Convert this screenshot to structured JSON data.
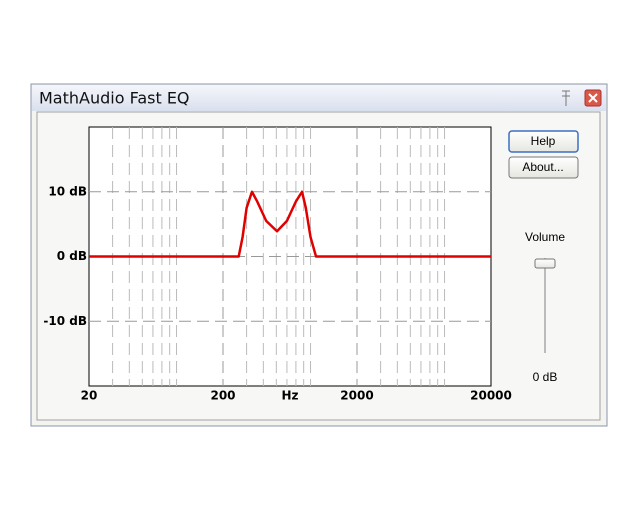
{
  "window": {
    "title": "MathAudio Fast EQ"
  },
  "buttons": [
    "Help",
    "About..."
  ],
  "volume": {
    "label": "Volume",
    "value_label": "0 dB"
  },
  "chart_data": {
    "type": "line",
    "xlabel": "Hz",
    "log_x": true,
    "xlim": [
      20,
      20000
    ],
    "ylim": [
      -20,
      20
    ],
    "xticks": [
      20,
      200,
      2000,
      20000
    ],
    "xminor_grid": [
      30,
      40,
      50,
      60,
      70,
      80,
      90,
      300,
      400,
      500,
      600,
      700,
      800,
      900,
      3000,
      4000,
      5000,
      6000,
      7000,
      8000,
      9000
    ],
    "yticks": [
      {
        "value": 10,
        "label": "10 dB"
      },
      {
        "value": 0,
        "label": "0 dB"
      },
      {
        "value": -10,
        "label": "-10 dB"
      }
    ],
    "grid": true,
    "color": "#e00000",
    "x": [
      20,
      200,
      262,
      280,
      300,
      329,
      360,
      420,
      506,
      600,
      700,
      778,
      830,
      900,
      989,
      20000
    ],
    "values": [
      0,
      0,
      0,
      3,
      7.5,
      10,
      8.5,
      5.5,
      3.9,
      5.5,
      8.5,
      10,
      7.5,
      3,
      0,
      0
    ]
  }
}
